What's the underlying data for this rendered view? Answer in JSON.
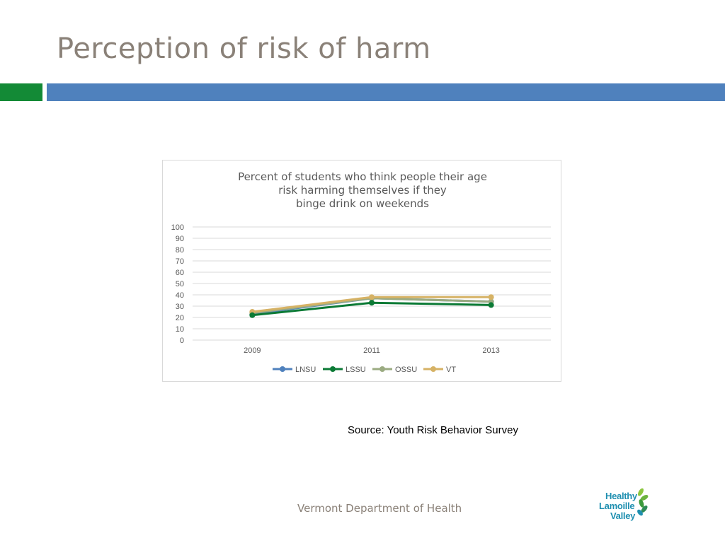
{
  "slide": {
    "title": "Perception of risk of harm",
    "source": "Source: Youth Risk Behavior Survey",
    "footer": "Vermont Department of Health",
    "logo_words": [
      "Healthy",
      "Lamoille",
      "Valley"
    ]
  },
  "colors": {
    "title": "#8a8178",
    "accent_green": "#138a36",
    "accent_blue": "#4f81bd"
  },
  "chart_data": {
    "type": "line",
    "title_lines": [
      "Percent of students who think people their age",
      "risk harming themselves if they",
      "binge drink on weekends"
    ],
    "categories": [
      "2009",
      "2011",
      "2013"
    ],
    "ylim": [
      0,
      100
    ],
    "yticks": [
      0,
      10,
      20,
      30,
      40,
      50,
      60,
      70,
      80,
      90,
      100
    ],
    "grid": true,
    "legend_position": "bottom",
    "series": [
      {
        "name": "LNSU",
        "color": "#4f81bd",
        "values": [
          23,
          37,
          34
        ]
      },
      {
        "name": "OSSU",
        "color": "#9bab82",
        "values": [
          24,
          37,
          34
        ]
      },
      {
        "name": "VT",
        "color": "#d6b265",
        "values": [
          25,
          38,
          38
        ]
      },
      {
        "name": "LSSU",
        "color": "#0b7a35",
        "values": [
          22,
          33,
          31
        ]
      }
    ],
    "legend_order": [
      "LNSU",
      "LSSU",
      "OSSU",
      "VT"
    ]
  }
}
